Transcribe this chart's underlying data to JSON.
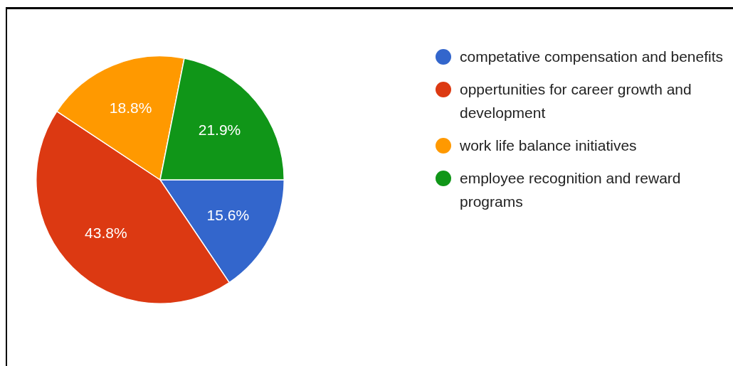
{
  "chart_data": {
    "type": "pie",
    "categories": [
      "competative compensation and benefits",
      "oppertunities for career growth and development",
      "work life balance initiatives",
      "employee recognition and reward programs"
    ],
    "values": [
      15.6,
      43.8,
      18.8,
      21.9
    ],
    "colors": [
      "#3366cc",
      "#dc3912",
      "#ff9900",
      "#109618"
    ],
    "value_labels": [
      "15.6%",
      "43.8%",
      "18.8%",
      "21.9%"
    ],
    "legend": "top right"
  }
}
